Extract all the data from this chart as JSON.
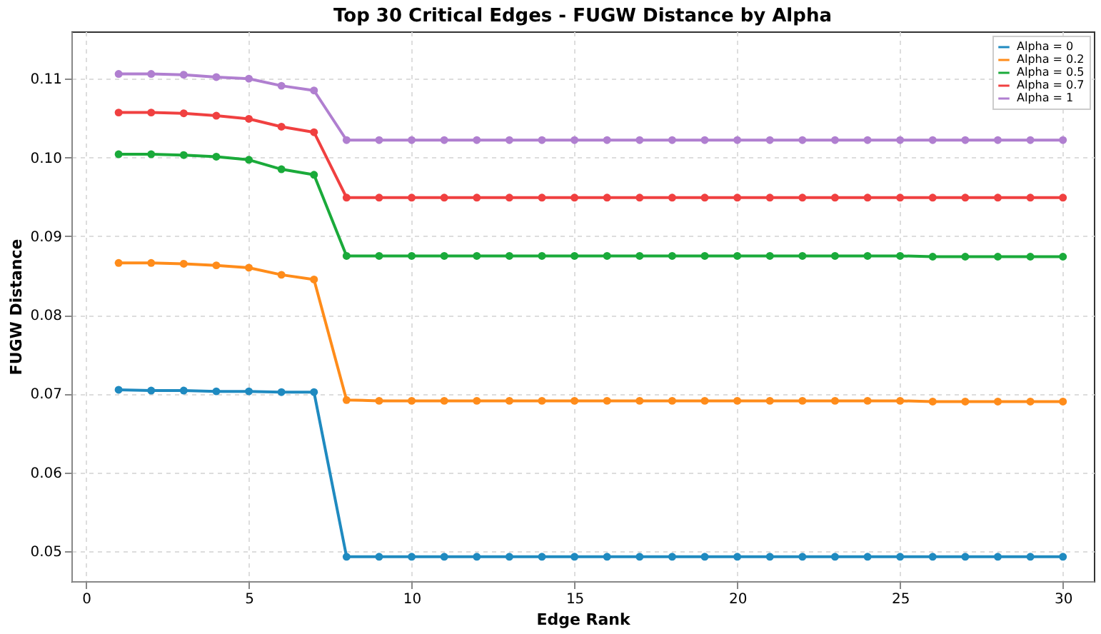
{
  "chart_data": {
    "type": "line",
    "title": "Top 30 Critical Edges - FUGW Distance by Alpha",
    "xlabel": "Edge Rank",
    "ylabel": "FUGW Distance",
    "x": [
      1,
      2,
      3,
      4,
      5,
      6,
      7,
      8,
      9,
      10,
      11,
      12,
      13,
      14,
      15,
      16,
      17,
      18,
      19,
      20,
      21,
      22,
      23,
      24,
      25,
      26,
      27,
      28,
      29,
      30
    ],
    "series": [
      {
        "name": "Alpha = 0",
        "color": "#1f8ac0",
        "values": [
          0.0705,
          0.0704,
          0.0704,
          0.0703,
          0.0703,
          0.0702,
          0.0702,
          0.0493,
          0.0493,
          0.0493,
          0.0493,
          0.0493,
          0.0493,
          0.0493,
          0.0493,
          0.0493,
          0.0493,
          0.0493,
          0.0493,
          0.0493,
          0.0493,
          0.0493,
          0.0493,
          0.0493,
          0.0493,
          0.0493,
          0.0493,
          0.0493,
          0.0493,
          0.0493
        ]
      },
      {
        "name": "Alpha = 0.2",
        "color": "#ff8c1a",
        "values": [
          0.0866,
          0.0866,
          0.0865,
          0.0863,
          0.086,
          0.0851,
          0.0845,
          0.0692,
          0.0691,
          0.0691,
          0.0691,
          0.0691,
          0.0691,
          0.0691,
          0.0691,
          0.0691,
          0.0691,
          0.0691,
          0.0691,
          0.0691,
          0.0691,
          0.0691,
          0.0691,
          0.0691,
          0.0691,
          0.069,
          0.069,
          0.069,
          0.069,
          0.069
        ]
      },
      {
        "name": "Alpha = 0.5",
        "color": "#1aaa3a",
        "values": [
          0.1004,
          0.1004,
          0.1003,
          0.1001,
          0.0997,
          0.0985,
          0.0978,
          0.0875,
          0.0875,
          0.0875,
          0.0875,
          0.0875,
          0.0875,
          0.0875,
          0.0875,
          0.0875,
          0.0875,
          0.0875,
          0.0875,
          0.0875,
          0.0875,
          0.0875,
          0.0875,
          0.0875,
          0.0875,
          0.0874,
          0.0874,
          0.0874,
          0.0874,
          0.0874
        ]
      },
      {
        "name": "Alpha = 0.7",
        "color": "#f04040",
        "values": [
          0.1057,
          0.1057,
          0.1056,
          0.1053,
          0.1049,
          0.1039,
          0.1032,
          0.0949,
          0.0949,
          0.0949,
          0.0949,
          0.0949,
          0.0949,
          0.0949,
          0.0949,
          0.0949,
          0.0949,
          0.0949,
          0.0949,
          0.0949,
          0.0949,
          0.0949,
          0.0949,
          0.0949,
          0.0949,
          0.0949,
          0.0949,
          0.0949,
          0.0949,
          0.0949
        ]
      },
      {
        "name": "Alpha = 1",
        "color": "#b07fd0",
        "values": [
          0.1106,
          0.1106,
          0.1105,
          0.1102,
          0.11,
          0.1091,
          0.1085,
          0.1022,
          0.1022,
          0.1022,
          0.1022,
          0.1022,
          0.1022,
          0.1022,
          0.1022,
          0.1022,
          0.1022,
          0.1022,
          0.1022,
          0.1022,
          0.1022,
          0.1022,
          0.1022,
          0.1022,
          0.1022,
          0.1022,
          0.1022,
          0.1022,
          0.1022,
          0.1022
        ]
      }
    ],
    "xlim": [
      -0.45,
      30.95
    ],
    "xticks": [
      0,
      5,
      10,
      15,
      20,
      25,
      30
    ],
    "ylim": [
      0.0462,
      0.116
    ],
    "yticks": [
      0.05,
      0.06,
      0.07,
      0.08,
      0.09,
      {
        "value": 0.1,
        "label": "0.10"
      },
      0.11
    ],
    "grid": true,
    "legend": "top right",
    "marker": "circle",
    "line_style": "solid"
  }
}
